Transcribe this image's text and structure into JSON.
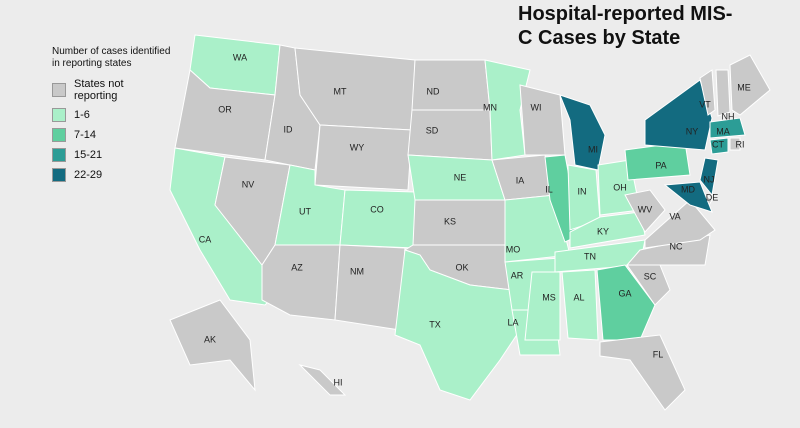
{
  "title": "Hospital-reported MIS-C Cases by State",
  "legend": {
    "title": "Number of cases identified in reporting states",
    "items": [
      {
        "label": "States not reporting",
        "color": "#c9c9c9"
      },
      {
        "label": "1-6",
        "color": "#aaf0c9"
      },
      {
        "label": "7-14",
        "color": "#5fcf9f"
      },
      {
        "label": "15-21",
        "color": "#2c9d96"
      },
      {
        "label": "22-29",
        "color": "#136b80"
      }
    ]
  },
  "states": [
    {
      "label": "WA",
      "color": "#aaf0c9"
    },
    {
      "label": "OR",
      "color": "#c9c9c9"
    },
    {
      "label": "CA",
      "color": "#aaf0c9"
    },
    {
      "label": "NV",
      "color": "#c9c9c9"
    },
    {
      "label": "ID",
      "color": "#c9c9c9"
    },
    {
      "label": "MT",
      "color": "#c9c9c9"
    },
    {
      "label": "WY",
      "color": "#c9c9c9"
    },
    {
      "label": "UT",
      "color": "#aaf0c9"
    },
    {
      "label": "CO",
      "color": "#aaf0c9"
    },
    {
      "label": "AZ",
      "color": "#c9c9c9"
    },
    {
      "label": "NM",
      "color": "#c9c9c9"
    },
    {
      "label": "ND",
      "color": "#c9c9c9"
    },
    {
      "label": "SD",
      "color": "#c9c9c9"
    },
    {
      "label": "NE",
      "color": "#aaf0c9"
    },
    {
      "label": "KS",
      "color": "#c9c9c9"
    },
    {
      "label": "OK",
      "color": "#c9c9c9"
    },
    {
      "label": "TX",
      "color": "#aaf0c9"
    },
    {
      "label": "MN",
      "color": "#aaf0c9"
    },
    {
      "label": "IA",
      "color": "#c9c9c9"
    },
    {
      "label": "MO",
      "color": "#aaf0c9"
    },
    {
      "label": "AR",
      "color": "#aaf0c9"
    },
    {
      "label": "LA",
      "color": "#aaf0c9"
    },
    {
      "label": "WI",
      "color": "#c9c9c9"
    },
    {
      "label": "IL",
      "color": "#5fcf9f"
    },
    {
      "label": "MI",
      "color": "#136b80"
    },
    {
      "label": "IN",
      "color": "#aaf0c9"
    },
    {
      "label": "OH",
      "color": "#aaf0c9"
    },
    {
      "label": "KY",
      "color": "#aaf0c9"
    },
    {
      "label": "TN",
      "color": "#aaf0c9"
    },
    {
      "label": "MS",
      "color": "#aaf0c9"
    },
    {
      "label": "AL",
      "color": "#aaf0c9"
    },
    {
      "label": "GA",
      "color": "#5fcf9f"
    },
    {
      "label": "FL",
      "color": "#c9c9c9"
    },
    {
      "label": "SC",
      "color": "#c9c9c9"
    },
    {
      "label": "NC",
      "color": "#c9c9c9"
    },
    {
      "label": "VA",
      "color": "#c9c9c9"
    },
    {
      "label": "WV",
      "color": "#c9c9c9"
    },
    {
      "label": "PA",
      "color": "#5fcf9f"
    },
    {
      "label": "NY",
      "color": "#136b80"
    },
    {
      "label": "VT",
      "color": "#c9c9c9"
    },
    {
      "label": "NH",
      "color": "#c9c9c9"
    },
    {
      "label": "ME",
      "color": "#c9c9c9"
    },
    {
      "label": "MA",
      "color": "#2c9d96"
    },
    {
      "label": "CT",
      "color": "#2c9d96"
    },
    {
      "label": "RI",
      "color": "#c9c9c9"
    },
    {
      "label": "NJ",
      "color": "#136b80"
    },
    {
      "label": "DE",
      "color": "#c9c9c9"
    },
    {
      "label": "MD",
      "color": "#136b80"
    },
    {
      "label": "AK",
      "color": "#c9c9c9"
    },
    {
      "label": "HI",
      "color": "#c9c9c9"
    }
  ]
}
